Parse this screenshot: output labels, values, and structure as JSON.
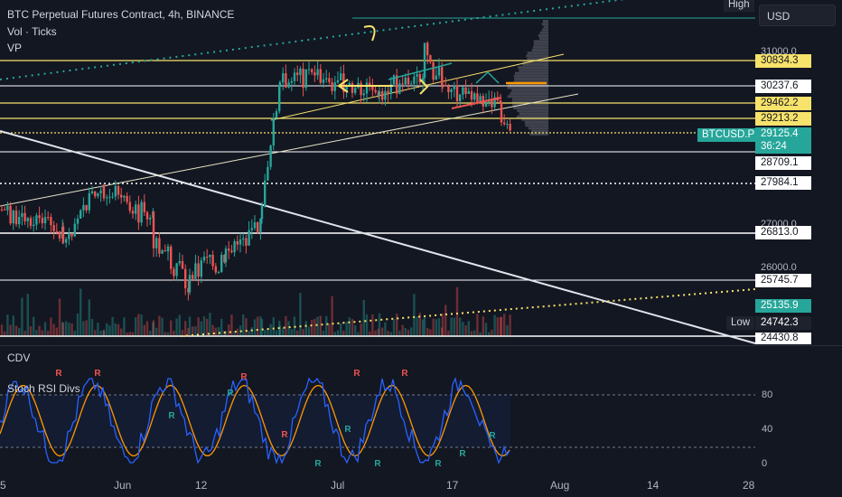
{
  "header": {
    "symbol_title": "BTC Perpetual Futures Contract, 4h, BINANCE",
    "indicator_vol": "Vol · Ticks",
    "indicator_vp": "VP"
  },
  "currency_button": "USD",
  "cdv_label": "CDV",
  "stoch_label": "Stoch RSI Divs",
  "high_tag": "High",
  "low_tag": "Low",
  "low_value": "24742.3",
  "symbol_tag": "BTCUSD.P",
  "current_price": "29125.4",
  "countdown": "36:24",
  "price_axis_ticks": [
    "31000.0",
    "27000.0",
    "26000.0",
    "24430.8"
  ],
  "price_labels": [
    {
      "value": "30834.3",
      "style": "yellow"
    },
    {
      "value": "30237.6",
      "style": "white"
    },
    {
      "value": "29462.2",
      "style": "yellow"
    },
    {
      "value": "29213.2",
      "style": "yellow"
    },
    {
      "value": "28709.1",
      "style": "white"
    },
    {
      "value": "27984.1",
      "style": "white"
    },
    {
      "value": "26813.0",
      "style": "white"
    },
    {
      "value": "25745.7",
      "style": "white"
    },
    {
      "value": "25135.9",
      "style": "teal"
    }
  ],
  "rsi_axis_ticks": [
    "80",
    "40",
    "0"
  ],
  "time_axis": [
    "5",
    "Jun",
    "12",
    "Jul",
    "17",
    "Aug",
    "14",
    "28"
  ],
  "colors": {
    "background": "#131722",
    "yellow": "#f7e26b",
    "teal": "#26a69a",
    "up_candle": "#26a69a",
    "down_candle": "#ef5350",
    "stoch_k": "#2962ff",
    "stoch_d": "#ff9800"
  }
}
